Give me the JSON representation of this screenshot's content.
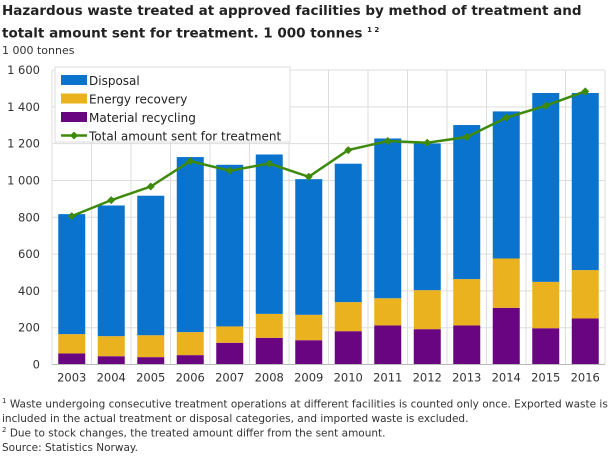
{
  "title": "Hazardous waste treated at approved facilities by method of treatment and totalt amount sent for treatment. 1 000 tonnes",
  "title_sup": "1 2",
  "chart_data": {
    "type": "bar",
    "stacked": true,
    "ylabel": "1 000 tonnes",
    "ylim": [
      0,
      1600
    ],
    "yticks": [
      "0",
      "200",
      "400",
      "600",
      "800",
      "1 000",
      "1 200",
      "1 400",
      "1 600"
    ],
    "ytick_values": [
      0,
      200,
      400,
      600,
      800,
      1000,
      1200,
      1400,
      1600
    ],
    "categories": [
      "2003",
      "2004",
      "2005",
      "2006",
      "2007",
      "2008",
      "2009",
      "2010",
      "2011",
      "2012",
      "2013",
      "2014",
      "2015",
      "2016"
    ],
    "series": [
      {
        "name": "Material recycling",
        "type": "bar",
        "color": "#6a0582",
        "values": [
          60,
          45,
          40,
          51,
          118,
          145,
          132,
          181,
          212,
          192,
          212,
          308,
          197,
          250
        ]
      },
      {
        "name": "Energy recovery",
        "type": "bar",
        "color": "#ebb21f",
        "values": [
          105,
          109,
          119,
          125,
          89,
          130,
          138,
          158,
          148,
          212,
          252,
          268,
          252,
          263
        ]
      },
      {
        "name": "Disposal",
        "type": "bar",
        "color": "#0a73cd",
        "values": [
          652,
          710,
          758,
          951,
          878,
          866,
          737,
          752,
          868,
          797,
          837,
          799,
          1026,
          962
        ]
      },
      {
        "name": "Total amount sent for treatment",
        "type": "line",
        "color": "#3d8a0c",
        "values": [
          806,
          893,
          967,
          1105,
          1053,
          1092,
          1020,
          1165,
          1214,
          1205,
          1236,
          1341,
          1406,
          1484
        ]
      }
    ],
    "legend_order": [
      "Disposal",
      "Energy recovery",
      "Material recycling",
      "Total amount sent for treatment"
    ],
    "legend": "top-left",
    "grid": true
  },
  "footnotes": [
    {
      "sup": "1",
      "text": "Waste undergoing consecutive treatment operations at different facilities is counted only once. Exported waste is included in the actual treatment or disposal categories, and imported waste is excluded."
    },
    {
      "sup": "2",
      "text": "Due to stock changes, the treated amount differ from the sent amount."
    }
  ],
  "source": "Source: Statistics Norway."
}
